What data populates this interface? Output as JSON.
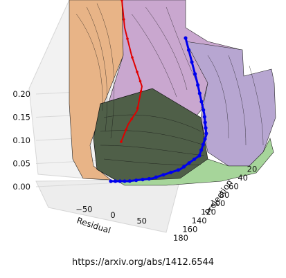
{
  "chart_data": {
    "type": "surface",
    "title": "",
    "xlabel": "Residual",
    "ylabel": "Projection",
    "zlabel": "",
    "x_ticks": [
      -50,
      0,
      50
    ],
    "y_ticks": [
      20,
      40,
      60,
      80,
      100,
      120,
      140,
      160,
      180
    ],
    "z_ticks": [
      0.0,
      0.05,
      0.1,
      0.15,
      0.2
    ],
    "z_tick_labels": [
      "0.00",
      "0.05",
      "0.10",
      "0.15",
      "0.20"
    ],
    "xlim": [
      -90,
      90
    ],
    "ylim": [
      0,
      180
    ],
    "zlim": [
      0,
      0.2
    ],
    "grid": true,
    "surface_colormap": [
      "#f0b890",
      "#c8a8d8",
      "#9ed690",
      "#5a6f4a"
    ],
    "series": [
      {
        "color": "#e00000",
        "points": [
          [
            -2,
            0,
            0.2
          ],
          [
            -1,
            6,
            0.17
          ],
          [
            2,
            14,
            0.14
          ],
          [
            4,
            20,
            0.12
          ],
          [
            6,
            25,
            0.11
          ],
          [
            7,
            30,
            0.1
          ],
          [
            8,
            33,
            0.095
          ]
        ]
      },
      {
        "color": "#0000ee",
        "points": [
          [
            42,
            0,
            0.2
          ],
          [
            45,
            20,
            0.13
          ],
          [
            48,
            40,
            0.08
          ],
          [
            50,
            60,
            0.05
          ],
          [
            48,
            80,
            0.03
          ],
          [
            40,
            100,
            0.015
          ],
          [
            20,
            120,
            0.007
          ],
          [
            -10,
            140,
            0.003
          ],
          [
            -40,
            160,
            0.001
          ],
          [
            -55,
            175,
            0.0
          ]
        ]
      }
    ]
  },
  "caption": "https://arxiv.org/abs/1412.6544"
}
